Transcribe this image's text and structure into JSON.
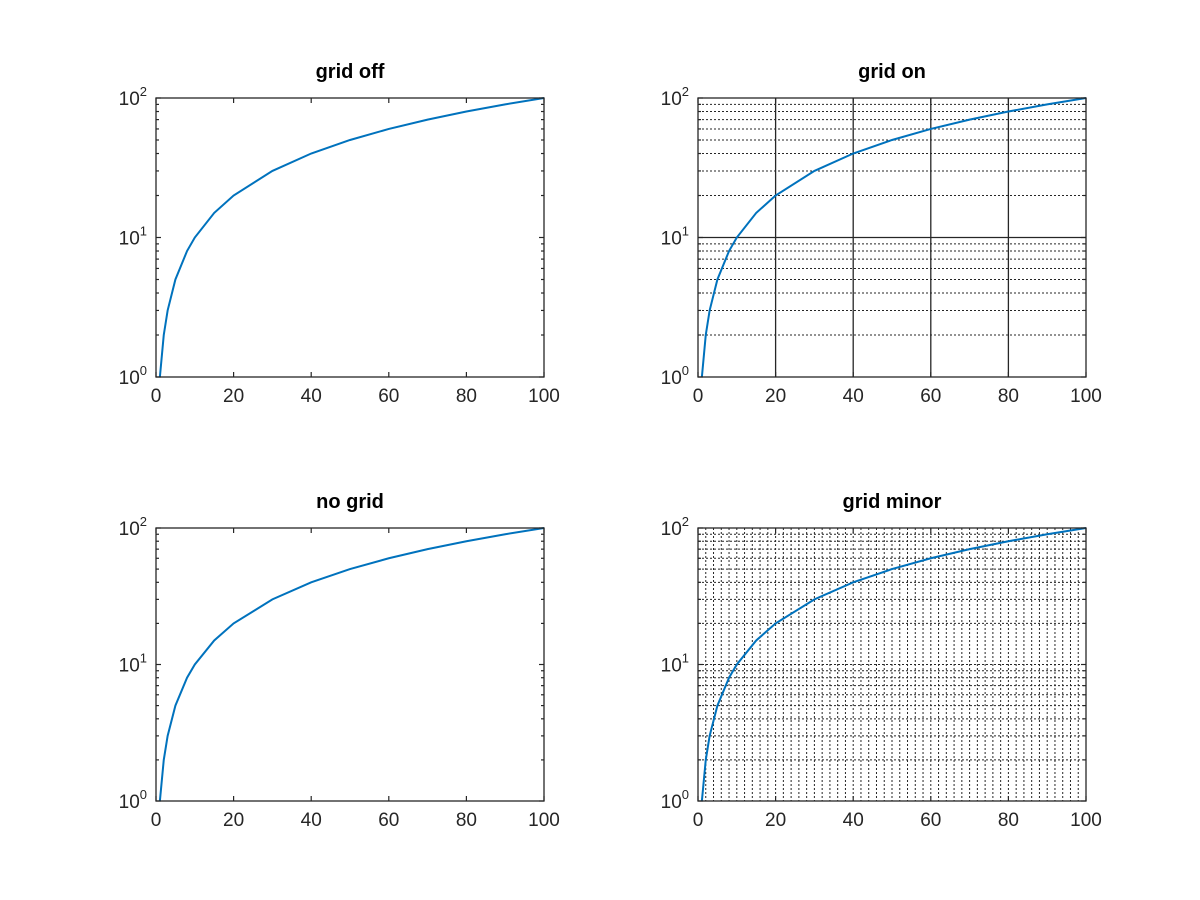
{
  "figure": {
    "colors": {
      "line": "#0072bd",
      "axes": "#262626",
      "background": "#ffffff"
    }
  },
  "chart_data": [
    {
      "type": "line",
      "title": "grid off",
      "grid": "off",
      "yscale": "log",
      "xlim": [
        0,
        100
      ],
      "ylim": [
        1,
        100
      ],
      "xticks": [
        0,
        20,
        40,
        60,
        80,
        100
      ],
      "xtick_labels": [
        "0",
        "20",
        "40",
        "60",
        "80",
        "100"
      ],
      "yticks": [
        1,
        10,
        100
      ],
      "ytick_labels": [
        {
          "base": "10",
          "exp": "0"
        },
        {
          "base": "10",
          "exp": "1"
        },
        {
          "base": "10",
          "exp": "2"
        }
      ],
      "series": [
        {
          "x": [
            1,
            2,
            3,
            5,
            8,
            10,
            15,
            20,
            30,
            40,
            50,
            60,
            70,
            80,
            90,
            100
          ],
          "y": [
            1,
            2,
            3,
            5,
            8,
            10,
            15,
            20,
            30,
            40,
            50,
            60,
            70,
            80,
            90,
            100
          ]
        }
      ],
      "xlabel": "",
      "ylabel": ""
    },
    {
      "type": "line",
      "title": "grid on",
      "grid": "on",
      "yscale": "log",
      "xlim": [
        0,
        100
      ],
      "ylim": [
        1,
        100
      ],
      "xticks": [
        0,
        20,
        40,
        60,
        80,
        100
      ],
      "xtick_labels": [
        "0",
        "20",
        "40",
        "60",
        "80",
        "100"
      ],
      "yticks": [
        1,
        10,
        100
      ],
      "ytick_labels": [
        {
          "base": "10",
          "exp": "0"
        },
        {
          "base": "10",
          "exp": "1"
        },
        {
          "base": "10",
          "exp": "2"
        }
      ],
      "series": [
        {
          "x": [
            1,
            2,
            3,
            5,
            8,
            10,
            15,
            20,
            30,
            40,
            50,
            60,
            70,
            80,
            90,
            100
          ],
          "y": [
            1,
            2,
            3,
            5,
            8,
            10,
            15,
            20,
            30,
            40,
            50,
            60,
            70,
            80,
            90,
            100
          ]
        }
      ],
      "xlabel": "",
      "ylabel": ""
    },
    {
      "type": "line",
      "title": "no grid",
      "grid": "off",
      "yscale": "log",
      "xlim": [
        0,
        100
      ],
      "ylim": [
        1,
        100
      ],
      "xticks": [
        0,
        20,
        40,
        60,
        80,
        100
      ],
      "xtick_labels": [
        "0",
        "20",
        "40",
        "60",
        "80",
        "100"
      ],
      "yticks": [
        1,
        10,
        100
      ],
      "ytick_labels": [
        {
          "base": "10",
          "exp": "0"
        },
        {
          "base": "10",
          "exp": "1"
        },
        {
          "base": "10",
          "exp": "2"
        }
      ],
      "series": [
        {
          "x": [
            1,
            2,
            3,
            5,
            8,
            10,
            15,
            20,
            30,
            40,
            50,
            60,
            70,
            80,
            90,
            100
          ],
          "y": [
            1,
            2,
            3,
            5,
            8,
            10,
            15,
            20,
            30,
            40,
            50,
            60,
            70,
            80,
            90,
            100
          ]
        }
      ],
      "xlabel": "",
      "ylabel": ""
    },
    {
      "type": "line",
      "title": "grid minor",
      "grid": "minor",
      "yscale": "log",
      "xlim": [
        0,
        100
      ],
      "ylim": [
        1,
        100
      ],
      "xticks": [
        0,
        20,
        40,
        60,
        80,
        100
      ],
      "xtick_labels": [
        "0",
        "20",
        "40",
        "60",
        "80",
        "100"
      ],
      "yticks": [
        1,
        10,
        100
      ],
      "ytick_labels": [
        {
          "base": "10",
          "exp": "0"
        },
        {
          "base": "10",
          "exp": "1"
        },
        {
          "base": "10",
          "exp": "2"
        }
      ],
      "series": [
        {
          "x": [
            1,
            2,
            3,
            5,
            8,
            10,
            15,
            20,
            30,
            40,
            50,
            60,
            70,
            80,
            90,
            100
          ],
          "y": [
            1,
            2,
            3,
            5,
            8,
            10,
            15,
            20,
            30,
            40,
            50,
            60,
            70,
            80,
            90,
            100
          ]
        }
      ],
      "xlabel": "",
      "ylabel": ""
    }
  ]
}
